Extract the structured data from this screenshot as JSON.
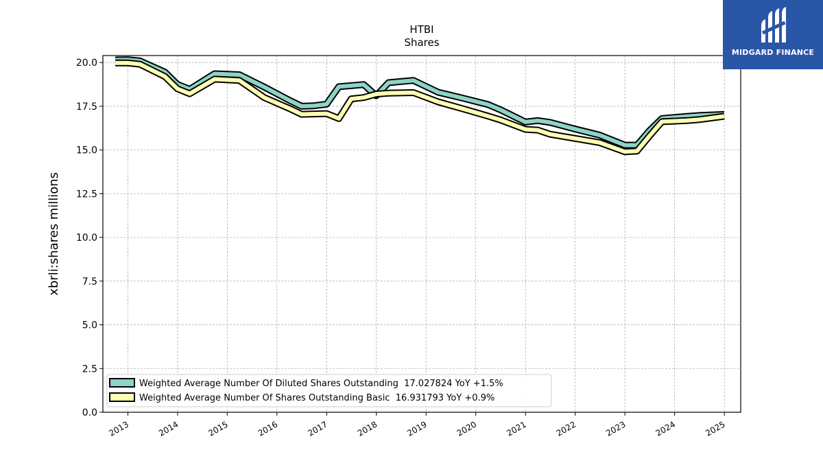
{
  "chart_data": {
    "type": "line",
    "title": "HTBI",
    "subtitle": "Shares",
    "xlabel": "",
    "ylabel": "xbrli:shares millions",
    "x_ticks": [
      "2013",
      "2014",
      "2015",
      "2016",
      "2017",
      "2018",
      "2019",
      "2020",
      "2021",
      "2022",
      "2023",
      "2024",
      "2025"
    ],
    "y_ticks": [
      "0.0",
      "2.5",
      "5.0",
      "7.5",
      "10.0",
      "12.5",
      "15.0",
      "17.5",
      "20.0"
    ],
    "xlim": [
      "2012-07-01",
      "2025-05-01"
    ],
    "ylim": [
      0,
      20.4
    ],
    "grid": true,
    "legend_position": "lower-left",
    "series": [
      {
        "name": "Weighted Average Number Of Diluted Shares Outstanding  17.027824 YoY +1.5%",
        "color": "#8dd3c7",
        "points": [
          [
            "2012-09-30",
            20.15
          ],
          [
            "2012-12-31",
            20.16
          ],
          [
            "2013-03-31",
            20.09
          ],
          [
            "2013-09-30",
            19.45
          ],
          [
            "2013-12-31",
            18.75
          ],
          [
            "2014-03-31",
            18.47
          ],
          [
            "2014-09-30",
            19.36
          ],
          [
            "2015-03-31",
            19.3
          ],
          [
            "2015-09-30",
            18.6
          ],
          [
            "2016-03-31",
            17.85
          ],
          [
            "2016-06-30",
            17.5
          ],
          [
            "2016-09-30",
            17.53
          ],
          [
            "2016-12-31",
            17.62
          ],
          [
            "2017-03-31",
            18.62
          ],
          [
            "2017-09-30",
            18.74
          ],
          [
            "2017-12-31",
            18.1
          ],
          [
            "2018-03-31",
            18.85
          ],
          [
            "2018-09-30",
            18.98
          ],
          [
            "2019-03-31",
            18.3
          ],
          [
            "2019-09-30",
            17.96
          ],
          [
            "2020-03-31",
            17.6
          ],
          [
            "2020-06-30",
            17.3
          ],
          [
            "2020-12-31",
            16.6
          ],
          [
            "2021-03-31",
            16.68
          ],
          [
            "2021-06-30",
            16.58
          ],
          [
            "2021-12-31",
            16.2
          ],
          [
            "2022-06-30",
            15.85
          ],
          [
            "2022-12-31",
            15.28
          ],
          [
            "2023-03-31",
            15.27
          ],
          [
            "2023-06-30",
            16.1
          ],
          [
            "2023-09-30",
            16.8
          ],
          [
            "2024-03-31",
            16.92
          ],
          [
            "2024-06-30",
            16.97
          ],
          [
            "2024-12-31",
            17.03
          ]
        ]
      },
      {
        "name": "Weighted Average Number Of Shares Outstanding Basic  16.931793 YoY +0.9%",
        "color": "#ffffb3",
        "points": [
          [
            "2012-09-30",
            19.98
          ],
          [
            "2012-12-31",
            19.98
          ],
          [
            "2013-03-31",
            19.9
          ],
          [
            "2013-09-30",
            19.2
          ],
          [
            "2013-12-31",
            18.5
          ],
          [
            "2014-03-31",
            18.22
          ],
          [
            "2014-09-30",
            19.05
          ],
          [
            "2015-03-31",
            18.98
          ],
          [
            "2015-09-30",
            18.0
          ],
          [
            "2016-03-31",
            17.38
          ],
          [
            "2016-06-30",
            17.04
          ],
          [
            "2016-09-30",
            17.06
          ],
          [
            "2016-12-31",
            17.08
          ],
          [
            "2017-03-31",
            16.8
          ],
          [
            "2017-06-30",
            17.92
          ],
          [
            "2017-09-30",
            18.0
          ],
          [
            "2017-12-31",
            18.2
          ],
          [
            "2018-03-31",
            18.25
          ],
          [
            "2018-09-30",
            18.28
          ],
          [
            "2019-03-31",
            17.75
          ],
          [
            "2019-09-30",
            17.35
          ],
          [
            "2020-03-31",
            16.94
          ],
          [
            "2020-06-30",
            16.72
          ],
          [
            "2020-12-31",
            16.18
          ],
          [
            "2021-03-31",
            16.14
          ],
          [
            "2021-06-30",
            15.9
          ],
          [
            "2021-12-31",
            15.66
          ],
          [
            "2022-06-30",
            15.42
          ],
          [
            "2022-12-31",
            14.9
          ],
          [
            "2023-03-31",
            14.94
          ],
          [
            "2023-06-30",
            15.8
          ],
          [
            "2023-09-30",
            16.62
          ],
          [
            "2024-03-31",
            16.68
          ],
          [
            "2024-06-30",
            16.74
          ],
          [
            "2024-12-31",
            16.93
          ]
        ]
      }
    ]
  },
  "logo": {
    "text": "MIDGARD FINANCE",
    "bg": "#2a56a8"
  }
}
